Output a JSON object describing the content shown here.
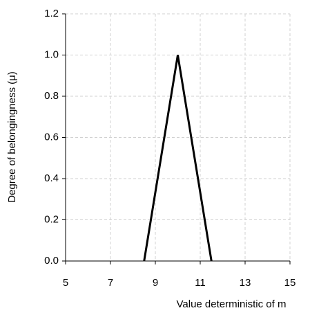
{
  "chart_data": {
    "type": "line",
    "xlabel": "Value deterministic  of m",
    "ylabel": "Degree of belongingness (μ)",
    "x": [
      8.5,
      10,
      11.5
    ],
    "series": [
      {
        "color": "#000000",
        "values": [
          0,
          1,
          0
        ]
      }
    ],
    "xlim": [
      5,
      15
    ],
    "xticks": [
      5,
      7,
      9,
      11,
      13,
      15
    ],
    "ylim": [
      0,
      1.2
    ],
    "yticks": [
      {
        "value": 0,
        "label": "0.0"
      },
      {
        "value": 0.2,
        "label": "0.2"
      },
      {
        "value": 0.4,
        "label": "0.4"
      },
      {
        "value": 0.6,
        "label": "0.6"
      },
      {
        "value": 0.8,
        "label": "0.8"
      },
      {
        "value": 1,
        "label": "1.0"
      },
      {
        "value": 1.2,
        "label": "1.2"
      }
    ],
    "grid": true
  }
}
